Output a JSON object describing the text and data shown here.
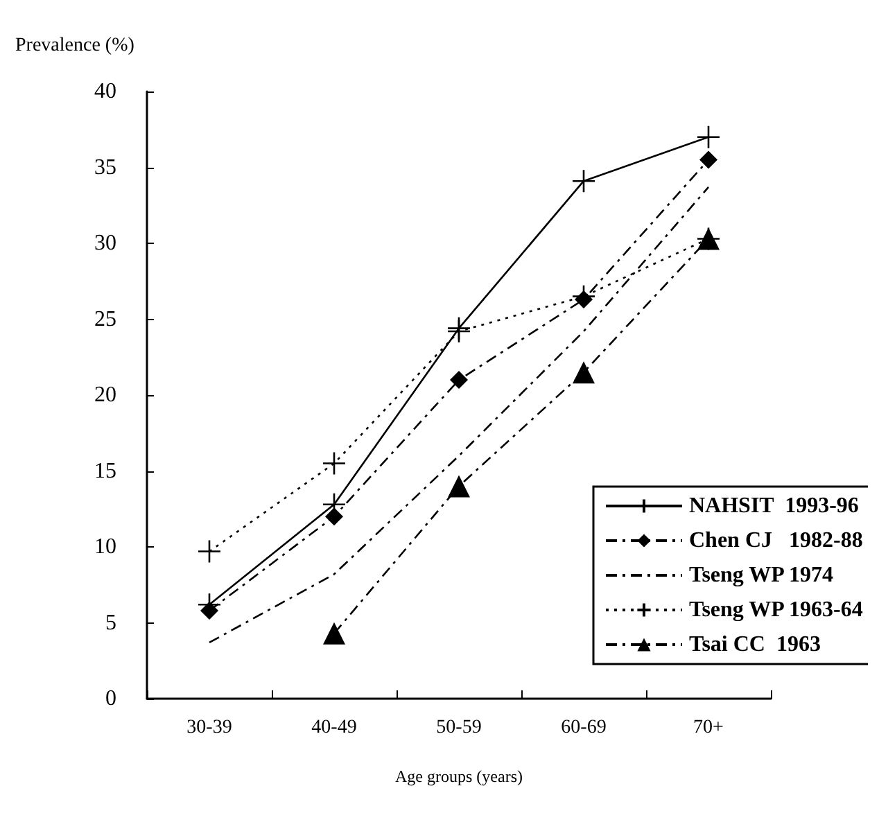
{
  "chart_data": {
    "type": "line",
    "xlabel": "Age groups (years)",
    "ylabel": "Prevalence (%)",
    "categories": [
      "30-39",
      "40-49",
      "50-59",
      "60-69",
      "70+"
    ],
    "ylim": [
      0,
      40
    ],
    "yticks": [
      0,
      5,
      10,
      15,
      20,
      25,
      30,
      35,
      40
    ],
    "grid": false,
    "legend": "right",
    "series": [
      {
        "name": "NAHSIT  1993-96",
        "color": "#000000",
        "marker": "cross",
        "line_style": "solid",
        "values": [
          6.2,
          12.8,
          24.4,
          34.1,
          37.0
        ]
      },
      {
        "name": "Chen CJ   1982-88",
        "color": "#000000",
        "marker": "diamond",
        "line_style": "dashed",
        "values": [
          5.8,
          12.0,
          21.0,
          26.3,
          35.5
        ]
      },
      {
        "name": "Tseng WP 1974",
        "color": "#000000",
        "marker": "none",
        "line_style": "dashed",
        "values": [
          3.7,
          8.2,
          16.0,
          24.2,
          33.7
        ]
      },
      {
        "name": "Tseng WP 1963-64",
        "color": "#000000",
        "marker": "cross",
        "line_style": "dotted",
        "values": [
          9.7,
          15.5,
          24.2,
          26.5,
          30.3
        ]
      },
      {
        "name": "Tsai CC  1963",
        "color": "#000000",
        "marker": "triangle",
        "line_style": "dashed",
        "values": [
          null,
          4.3,
          14.0,
          21.5,
          30.3
        ]
      }
    ]
  }
}
